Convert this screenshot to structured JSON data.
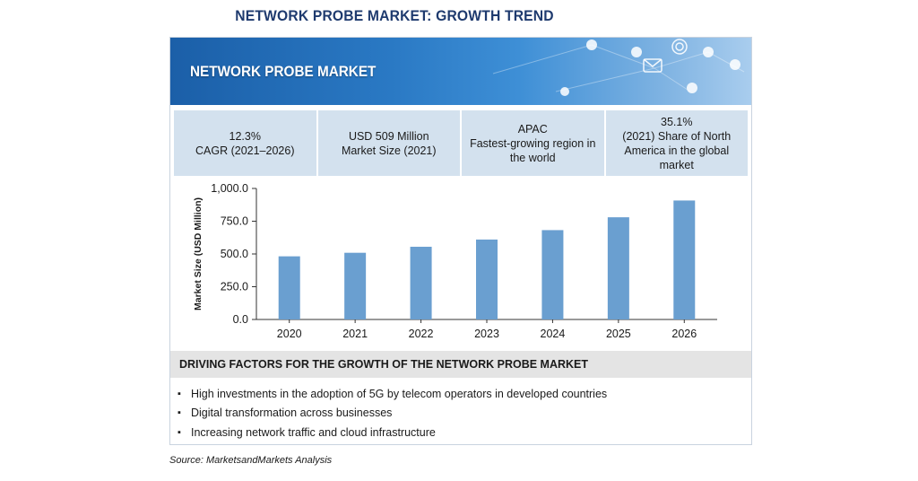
{
  "page_title": "NETWORK PROBE MARKET: GROWTH TREND",
  "banner": {
    "title": "NETWORK PROBE MARKET"
  },
  "stats": [
    {
      "line1": "12.3%",
      "line2": "CAGR (2021–2026)"
    },
    {
      "line1": "USD 509 Million",
      "line2": "Market Size (2021)"
    },
    {
      "line1": "APAC",
      "line2": "Fastest-growing region in the world"
    },
    {
      "line1": "35.1%",
      "line2": "(2021) Share of North America in the global market"
    }
  ],
  "chart_data": {
    "type": "bar",
    "categories": [
      "2020",
      "2021",
      "2022",
      "2023",
      "2024",
      "2025",
      "2026"
    ],
    "values": [
      482,
      509,
      555,
      610,
      682,
      780,
      908
    ],
    "ylabel": "Market Size (USD Million)",
    "ylim": [
      0,
      1000
    ],
    "yticks": [
      "0.0",
      "250.0",
      "500.0",
      "750.0",
      "1,000.0"
    ],
    "grid": false,
    "bar_color": "#6a9fd0"
  },
  "drivers": {
    "heading": "DRIVING FACTORS FOR THE GROWTH OF THE NETWORK PROBE MARKET",
    "items": [
      "High investments in the adoption of 5G by telecom operators in developed countries",
      "Digital transformation across businesses",
      "Increasing network traffic and cloud infrastructure"
    ]
  },
  "source": "Source: MarketsandMarkets Analysis",
  "colors": {
    "title": "#1e3a6e",
    "banner": "#2a79c4",
    "stat_bg": "#d3e1ee",
    "drivers_bg": "#e4e4e4"
  }
}
